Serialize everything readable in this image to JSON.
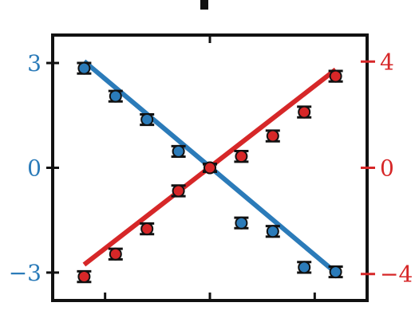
{
  "chart_data": {
    "type": "scatter",
    "title": "",
    "xlabel": "",
    "ylabel": "",
    "xlim": [
      -4.5,
      4.5
    ],
    "x_ticks": [
      -3,
      0,
      3
    ],
    "grid": false,
    "legend": "none",
    "left_axis": {
      "ylim": [
        -3.8,
        3.8
      ],
      "ticks": [
        3,
        0,
        -3
      ],
      "tick_labels": [
        "3",
        "0",
        "−3"
      ],
      "color": "#2b7bb9"
    },
    "right_axis": {
      "ylim": [
        -5.0,
        5.0
      ],
      "ticks": [
        4,
        0,
        -4
      ],
      "tick_labels": [
        "4",
        "0",
        "−4"
      ],
      "color": "#d62728"
    },
    "series": [
      {
        "axis": "left",
        "color": "#2b7bb9",
        "points": [
          {
            "x": -3.6,
            "y": 2.85,
            "err": 0.15
          },
          {
            "x": -2.7,
            "y": 2.05,
            "err": 0.15
          },
          {
            "x": -1.8,
            "y": 1.38,
            "err": 0.15
          },
          {
            "x": -0.9,
            "y": 0.47,
            "err": 0.15
          },
          {
            "x": 0.0,
            "y": 0.0,
            "err": 0.1
          },
          {
            "x": 0.9,
            "y": -1.58,
            "err": 0.15
          },
          {
            "x": 1.8,
            "y": -1.82,
            "err": 0.15
          },
          {
            "x": 2.7,
            "y": -2.85,
            "err": 0.15
          },
          {
            "x": 3.6,
            "y": -2.98,
            "err": 0.15
          }
        ],
        "fit": {
          "x": [
            -3.6,
            3.6
          ],
          "y": [
            3.05,
            -3.0
          ]
        }
      },
      {
        "axis": "right",
        "color": "#d62728",
        "points": [
          {
            "x": -3.6,
            "y": -4.1,
            "err": 0.2
          },
          {
            "x": -2.7,
            "y": -3.25,
            "err": 0.2
          },
          {
            "x": -1.8,
            "y": -2.3,
            "err": 0.2
          },
          {
            "x": -0.9,
            "y": -0.87,
            "err": 0.2
          },
          {
            "x": 0.0,
            "y": 0.0,
            "err": 0.15
          },
          {
            "x": 0.9,
            "y": 0.43,
            "err": 0.2
          },
          {
            "x": 1.8,
            "y": 1.2,
            "err": 0.2
          },
          {
            "x": 2.7,
            "y": 2.1,
            "err": 0.2
          },
          {
            "x": 3.6,
            "y": 3.45,
            "err": 0.2
          }
        ],
        "fit": {
          "x": [
            -3.6,
            3.6
          ],
          "y": [
            -3.65,
            3.7
          ]
        }
      }
    ]
  }
}
